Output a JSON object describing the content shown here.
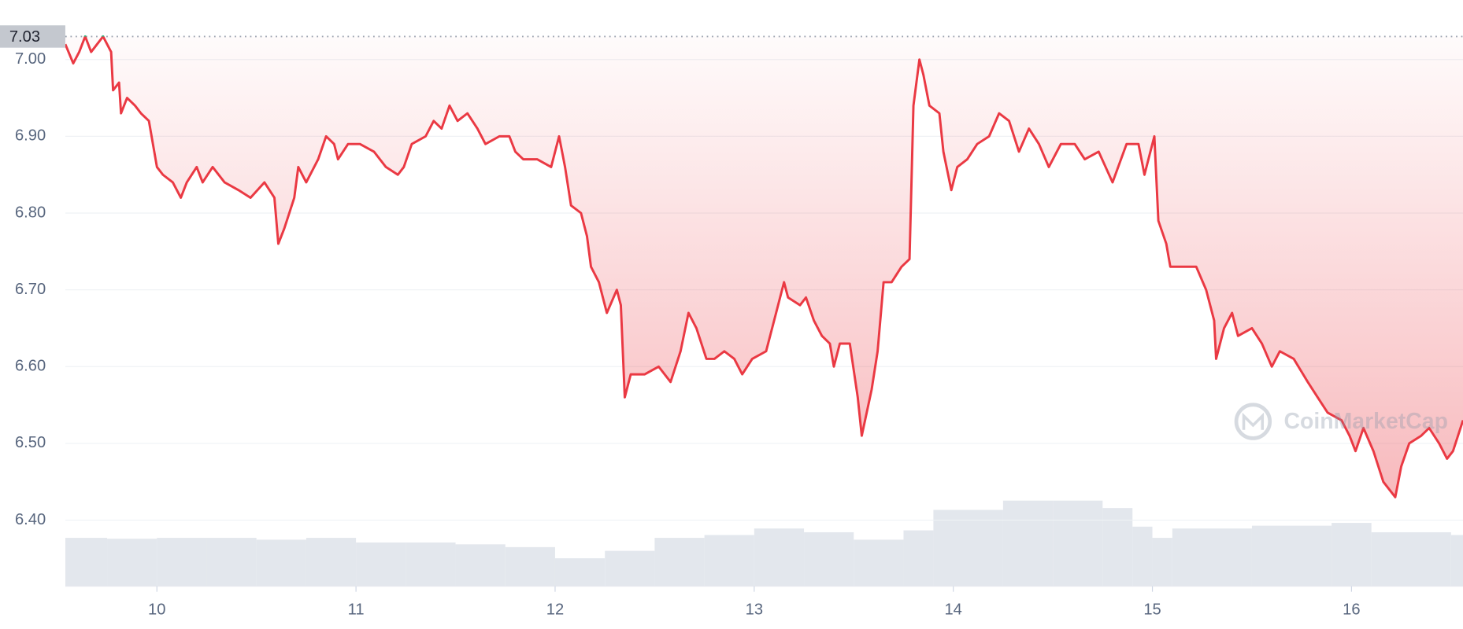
{
  "chart_data": {
    "type": "line",
    "x": [
      9.54,
      9.58,
      9.61,
      9.64,
      9.67,
      9.7,
      9.73,
      9.77,
      9.78,
      9.81,
      9.82,
      9.85,
      9.89,
      9.92,
      9.96,
      10.0,
      10.03,
      10.08,
      10.12,
      10.15,
      10.2,
      10.23,
      10.28,
      10.34,
      10.41,
      10.47,
      10.54,
      10.59,
      10.61,
      10.64,
      10.69,
      10.71,
      10.75,
      10.81,
      10.85,
      10.89,
      10.91,
      10.96,
      11.02,
      11.09,
      11.15,
      11.21,
      11.24,
      11.28,
      11.35,
      11.39,
      11.43,
      11.47,
      11.51,
      11.56,
      11.61,
      11.65,
      11.72,
      11.77,
      11.8,
      11.84,
      11.91,
      11.98,
      12.02,
      12.05,
      12.08,
      12.13,
      12.16,
      12.18,
      12.22,
      12.26,
      12.31,
      12.33,
      12.35,
      12.38,
      12.45,
      12.52,
      12.58,
      12.63,
      12.67,
      12.71,
      12.76,
      12.8,
      12.85,
      12.9,
      12.94,
      12.99,
      13.06,
      13.11,
      13.15,
      13.17,
      13.23,
      13.26,
      13.3,
      13.34,
      13.38,
      13.4,
      13.43,
      13.48,
      13.52,
      13.54,
      13.59,
      13.62,
      13.65,
      13.69,
      13.74,
      13.78,
      13.8,
      13.83,
      13.85,
      13.88,
      13.93,
      13.95,
      13.99,
      14.02,
      14.07,
      14.12,
      14.18,
      14.23,
      14.28,
      14.33,
      14.38,
      14.43,
      14.48,
      14.54,
      14.61,
      14.66,
      14.73,
      14.8,
      14.87,
      14.93,
      14.96,
      15.01,
      15.03,
      15.07,
      15.09,
      15.15,
      15.22,
      15.27,
      15.31,
      15.32,
      15.36,
      15.4,
      15.43,
      15.5,
      15.55,
      15.6,
      15.64,
      15.71,
      15.78,
      15.83,
      15.88,
      15.95,
      15.99,
      16.02,
      16.06,
      16.11,
      16.16,
      16.22,
      16.25,
      16.29,
      16.35,
      16.39,
      16.44,
      16.48,
      16.51,
      16.56
    ],
    "series": [
      {
        "color": "#ea3943",
        "above_color": "#16c784",
        "values": [
          7.02,
          6.995,
          7.01,
          7.03,
          7.01,
          7.02,
          7.03,
          7.01,
          6.96,
          6.97,
          6.93,
          6.95,
          6.94,
          6.93,
          6.92,
          6.86,
          6.85,
          6.84,
          6.82,
          6.84,
          6.86,
          6.84,
          6.86,
          6.84,
          6.83,
          6.82,
          6.84,
          6.82,
          6.76,
          6.78,
          6.82,
          6.86,
          6.84,
          6.87,
          6.9,
          6.89,
          6.87,
          6.89,
          6.89,
          6.88,
          6.86,
          6.85,
          6.86,
          6.89,
          6.9,
          6.92,
          6.91,
          6.94,
          6.92,
          6.93,
          6.91,
          6.89,
          6.9,
          6.9,
          6.88,
          6.87,
          6.87,
          6.86,
          6.9,
          6.86,
          6.81,
          6.8,
          6.77,
          6.73,
          6.71,
          6.67,
          6.7,
          6.68,
          6.56,
          6.59,
          6.59,
          6.6,
          6.58,
          6.62,
          6.67,
          6.65,
          6.61,
          6.61,
          6.62,
          6.61,
          6.59,
          6.61,
          6.62,
          6.67,
          6.71,
          6.69,
          6.68,
          6.69,
          6.66,
          6.64,
          6.63,
          6.6,
          6.63,
          6.63,
          6.56,
          6.51,
          6.57,
          6.62,
          6.71,
          6.71,
          6.73,
          6.74,
          6.94,
          7.0,
          6.98,
          6.94,
          6.93,
          6.88,
          6.83,
          6.86,
          6.87,
          6.89,
          6.9,
          6.93,
          6.92,
          6.88,
          6.91,
          6.89,
          6.86,
          6.89,
          6.89,
          6.87,
          6.88,
          6.84,
          6.89,
          6.89,
          6.85,
          6.9,
          6.79,
          6.76,
          6.73,
          6.73,
          6.73,
          6.7,
          6.66,
          6.61,
          6.65,
          6.67,
          6.64,
          6.65,
          6.63,
          6.6,
          6.62,
          6.61,
          6.58,
          6.56,
          6.54,
          6.53,
          6.51,
          6.49,
          6.52,
          6.49,
          6.45,
          6.43,
          6.47,
          6.5,
          6.51,
          6.52,
          6.5,
          6.48,
          6.49,
          6.53
        ]
      }
    ],
    "current_price": 7.03,
    "volume": {
      "color": "#e3e7ed",
      "x": [
        9.54,
        9.75,
        10.0,
        10.25,
        10.5,
        10.75,
        11.0,
        11.25,
        11.5,
        11.75,
        12.0,
        12.25,
        12.5,
        12.75,
        13.0,
        13.25,
        13.5,
        13.75,
        13.9,
        14.25,
        14.5,
        14.75,
        14.9,
        15.0,
        15.1,
        15.5,
        15.9,
        16.1,
        16.5
      ],
      "values": [
        52,
        51,
        52,
        52,
        50,
        52,
        47,
        47,
        45,
        42,
        30,
        38,
        52,
        55,
        62,
        58,
        50,
        60,
        82,
        92,
        92,
        84,
        64,
        52,
        62,
        65,
        68,
        58,
        55
      ],
      "lim": [
        0,
        100
      ]
    },
    "xlim": [
      9.54,
      16.56
    ],
    "ylim": [
      6.32,
      7.04
    ],
    "xticks": [
      10,
      11,
      12,
      13,
      14,
      15,
      16
    ],
    "yticks": [
      {
        "value": 6.4,
        "label": "6.40"
      },
      {
        "value": 6.5,
        "label": "6.50"
      },
      {
        "value": 6.6,
        "label": "6.60"
      },
      {
        "value": 6.7,
        "label": "6.70"
      },
      {
        "value": 6.8,
        "label": "6.80"
      },
      {
        "value": 6.9,
        "label": "6.90"
      },
      {
        "value": 7.0,
        "label": "7.00"
      }
    ],
    "grid": true,
    "watermark": "CoinMarketCap"
  }
}
